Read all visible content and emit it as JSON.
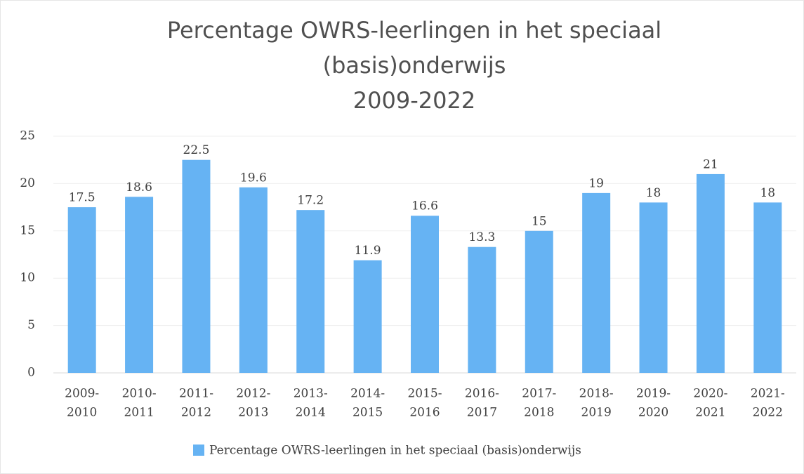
{
  "chart_data": {
    "type": "bar",
    "title": [
      "Percentage OWRS-leerlingen in het speciaal",
      "(basis)onderwijs",
      "2009-2022"
    ],
    "categories": [
      [
        "2009-",
        "2010"
      ],
      [
        "2010-",
        "2011"
      ],
      [
        "2011-",
        "2012"
      ],
      [
        "2012-",
        "2013"
      ],
      [
        "2013-",
        "2014"
      ],
      [
        "2014-",
        "2015"
      ],
      [
        "2015-",
        "2016"
      ],
      [
        "2016-",
        "2017"
      ],
      [
        "2017-",
        "2018"
      ],
      [
        "2018-",
        "2019"
      ],
      [
        "2019-",
        "2020"
      ],
      [
        "2020-",
        "2021"
      ],
      [
        "2021-",
        "2022"
      ]
    ],
    "series": [
      {
        "name": "Percentage OWRS-leerlingen in het speciaal (basis)onderwijs",
        "color": "#66b3f3",
        "values": [
          17.5,
          18.6,
          22.5,
          19.6,
          17.2,
          11.9,
          16.6,
          13.3,
          15,
          19,
          18,
          21,
          18
        ]
      }
    ],
    "ylim": [
      0,
      25
    ],
    "yticks": [
      0,
      5,
      10,
      15,
      20,
      25
    ],
    "grid": true,
    "legend": "bottom"
  }
}
